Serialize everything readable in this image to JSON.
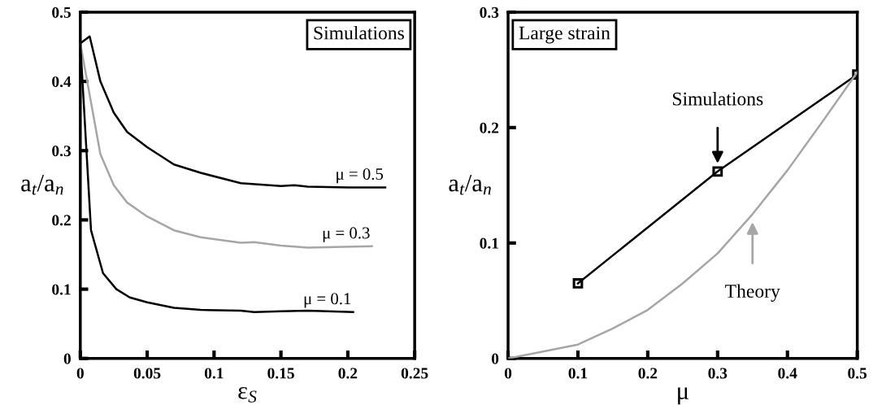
{
  "chart_data": [
    {
      "type": "line",
      "title": "Simulations",
      "xlabel": "ε$_{S}$",
      "ylabel": "a$_{t}$/a$_{n}$",
      "xlim": [
        0,
        0.25
      ],
      "ylim": [
        0,
        0.5
      ],
      "xticks": [
        0,
        0.05,
        0.1,
        0.15,
        0.2,
        0.25
      ],
      "yticks": [
        0,
        0.1,
        0.2,
        0.3,
        0.4,
        0.5
      ],
      "grid": false,
      "marker": "none",
      "line_style": "solid",
      "series": [
        {
          "name": "μ = 0.5",
          "color": "#000000",
          "x": [
            0,
            0.007,
            0.015,
            0.025,
            0.035,
            0.05,
            0.07,
            0.09,
            0.12,
            0.15,
            0.16,
            0.17,
            0.2,
            0.228
          ],
          "values": [
            0.455,
            0.465,
            0.4,
            0.355,
            0.327,
            0.305,
            0.28,
            0.268,
            0.253,
            0.249,
            0.25,
            0.248,
            0.247,
            0.247
          ]
        },
        {
          "name": "μ = 0.3",
          "color": "#a6a6a6",
          "x": [
            0,
            0.015,
            0.025,
            0.035,
            0.05,
            0.07,
            0.09,
            0.12,
            0.13,
            0.15,
            0.17,
            0.19,
            0.218
          ],
          "values": [
            0.455,
            0.295,
            0.25,
            0.225,
            0.205,
            0.185,
            0.175,
            0.167,
            0.168,
            0.163,
            0.16,
            0.161,
            0.162
          ]
        },
        {
          "name": "μ = 0.1",
          "color": "#000000",
          "x": [
            0,
            0.008,
            0.017,
            0.027,
            0.037,
            0.05,
            0.07,
            0.09,
            0.12,
            0.13,
            0.15,
            0.17,
            0.204
          ],
          "values": [
            0.455,
            0.185,
            0.123,
            0.1,
            0.088,
            0.081,
            0.073,
            0.07,
            0.069,
            0.067,
            0.068,
            0.069,
            0.067
          ]
        }
      ]
    },
    {
      "type": "line",
      "title": "Large strain",
      "xlabel": "μ",
      "ylabel": "a$_{t}$/a$_{n}$",
      "xlim": [
        0,
        0.5
      ],
      "ylim": [
        0,
        0.3
      ],
      "xticks": [
        0,
        0.1,
        0.2,
        0.3,
        0.4,
        0.5
      ],
      "yticks": [
        0,
        0.1,
        0.2,
        0.3
      ],
      "grid": false,
      "line_style": "solid",
      "series": [
        {
          "name": "Simulations",
          "color": "#000000",
          "marker": "square",
          "x": [
            0.1,
            0.3,
            0.5
          ],
          "values": [
            0.065,
            0.162,
            0.246
          ]
        },
        {
          "name": "Theory",
          "color": "#a6a6a6",
          "marker": "none",
          "x": [
            0,
            0.05,
            0.1,
            0.15,
            0.2,
            0.25,
            0.3,
            0.35,
            0.4,
            0.45,
            0.5
          ],
          "values": [
            0,
            0.006,
            0.012,
            0.026,
            0.042,
            0.065,
            0.091,
            0.125,
            0.163,
            0.205,
            0.248
          ]
        }
      ]
    }
  ]
}
